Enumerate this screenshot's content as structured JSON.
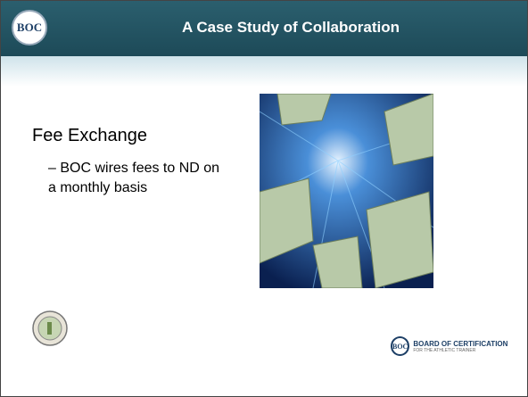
{
  "header": {
    "logo_text": "BOC",
    "title": "A Case Study of Collaboration"
  },
  "body": {
    "heading": "Fee Exchange",
    "bullet": "– BOC wires fees to ND on a monthly basis"
  },
  "footer": {
    "logo_text": "BOC",
    "logo_title": "BOARD OF CERTIFICATION",
    "logo_subtitle": "FOR THE ATHLETIC TRAINER"
  }
}
